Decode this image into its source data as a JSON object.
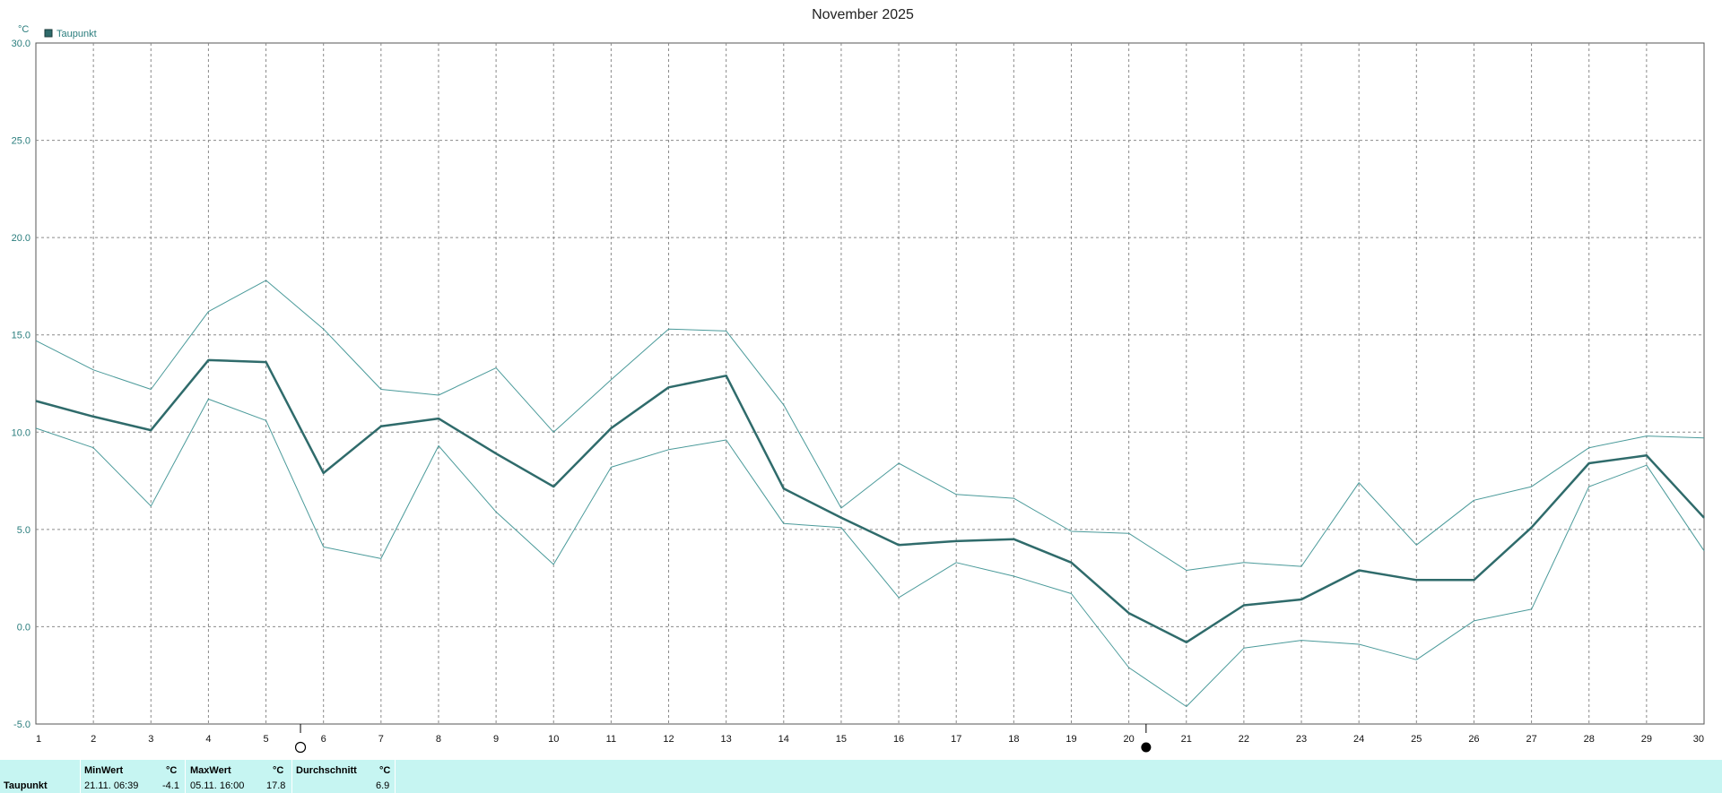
{
  "chart_data": {
    "type": "line",
    "title": "November 2025",
    "ylabel": "°C",
    "ylim": [
      -5,
      30
    ],
    "yticks": [
      "30.0",
      "25.0",
      "20.0",
      "15.0",
      "10.0",
      "5.0",
      "0.0",
      "-5.0"
    ],
    "x": [
      1,
      2,
      3,
      4,
      5,
      6,
      7,
      8,
      9,
      10,
      11,
      12,
      13,
      14,
      15,
      16,
      17,
      18,
      19,
      20,
      21,
      22,
      23,
      24,
      25,
      26,
      27,
      28,
      29,
      30
    ],
    "legend": {
      "label": "Taupunkt",
      "position": "top-left",
      "color": "#2f6b6b"
    },
    "grid": true,
    "series": [
      {
        "name": "Taupunkt",
        "role": "avg",
        "values": [
          11.6,
          10.8,
          10.1,
          13.7,
          13.6,
          7.9,
          10.3,
          10.7,
          8.9,
          7.2,
          10.2,
          12.3,
          12.9,
          7.1,
          5.6,
          4.2,
          4.4,
          4.5,
          3.3,
          0.7,
          -0.8,
          1.1,
          1.4,
          2.9,
          2.4,
          2.4,
          5.1,
          8.4,
          8.8,
          5.6
        ]
      },
      {
        "role": "max",
        "values": [
          14.7,
          13.2,
          12.2,
          16.2,
          17.8,
          15.3,
          12.2,
          11.9,
          13.3,
          10.0,
          12.7,
          15.3,
          15.2,
          11.4,
          6.1,
          8.4,
          6.8,
          6.6,
          4.9,
          4.8,
          2.9,
          3.3,
          3.1,
          7.4,
          4.2,
          6.5,
          7.2,
          9.2,
          9.8,
          9.7
        ]
      },
      {
        "role": "min",
        "values": [
          10.2,
          9.2,
          6.2,
          11.7,
          10.6,
          4.1,
          3.5,
          9.3,
          5.9,
          3.2,
          8.2,
          9.1,
          9.6,
          5.3,
          5.1,
          1.5,
          3.3,
          2.6,
          1.7,
          -2.1,
          -4.1,
          -1.1,
          -0.7,
          -0.9,
          -1.7,
          0.3,
          0.9,
          7.2,
          8.3,
          3.9
        ]
      }
    ],
    "moon_phases": [
      {
        "x": 5.6,
        "phase": "full-moon-icon"
      },
      {
        "x": 20.3,
        "phase": "new-moon-icon"
      }
    ],
    "colors": {
      "avg": "#2f6b6b",
      "minmax": "#4a9a9a",
      "axis_text": "#2a7d7d",
      "grid": "#8a8a8a",
      "panel_bg": "#c6f5f2"
    }
  },
  "stats": {
    "row_label": "Taupunkt",
    "min": {
      "header": "MinWert",
      "unit": "°C",
      "datetime": "21.11. 06:39",
      "value": "-4.1"
    },
    "max": {
      "header": "MaxWert",
      "unit": "°C",
      "datetime": "05.11. 16:00",
      "value": "17.8"
    },
    "avg": {
      "header": "Durchschnitt",
      "unit": "°C",
      "value": "6.9"
    }
  }
}
